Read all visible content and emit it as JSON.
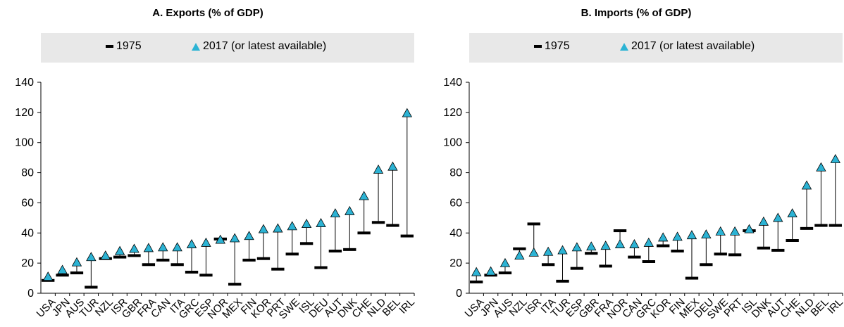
{
  "legend": {
    "item_1975": "1975",
    "item_2017": "2017 (or latest available)",
    "color_2017": "#2cb3d4",
    "color_1975": "#000000"
  },
  "chart_data": [
    {
      "type": "dumbbell",
      "title": "A. Exports (% of GDP)",
      "ylim": [
        0,
        140
      ],
      "yticks": [
        0,
        20,
        40,
        60,
        80,
        100,
        120,
        140
      ],
      "categories": [
        "USA",
        "JPN",
        "AUS",
        "TUR",
        "NZL",
        "ISR",
        "GBR",
        "FRA",
        "CAN",
        "ITA",
        "GRC",
        "ESP",
        "NOR",
        "MEX",
        "FIN",
        "KOR",
        "PRT",
        "SWE",
        "ISL",
        "DEU",
        "AUT",
        "DNK",
        "CHE",
        "NLD",
        "BEL",
        "IRL"
      ],
      "series": [
        {
          "name": "1975",
          "values": [
            8.5,
            12,
            13.5,
            4,
            23,
            24,
            25,
            19,
            22,
            19,
            14,
            12,
            36,
            6,
            22,
            23,
            16,
            26,
            33,
            17,
            28,
            29,
            40,
            47,
            45,
            38
          ]
        },
        {
          "name": "2017 (or latest available)",
          "values": [
            11,
            15.5,
            20.5,
            24,
            25,
            28,
            29.5,
            30,
            30.5,
            30.5,
            32.5,
            33.5,
            35.5,
            36.5,
            38,
            42.5,
            43,
            44.5,
            46,
            46.5,
            53,
            54.5,
            64.5,
            82,
            84,
            119.5
          ]
        }
      ]
    },
    {
      "type": "dumbbell",
      "title": "B. Imports (% of GDP)",
      "ylim": [
        0,
        140
      ],
      "yticks": [
        0,
        20,
        40,
        60,
        80,
        100,
        120,
        140
      ],
      "categories": [
        "USA",
        "JPN",
        "AUS",
        "NZL",
        "ISR",
        "ITA",
        "TUR",
        "ESP",
        "GBR",
        "FRA",
        "NOR",
        "CAN",
        "GRC",
        "KOR",
        "FIN",
        "MEX",
        "DEU",
        "SWE",
        "PRT",
        "ISL",
        "DNK",
        "AUT",
        "CHE",
        "NLD",
        "BEL",
        "IRL"
      ],
      "series": [
        {
          "name": "1975",
          "values": [
            7.5,
            12,
            13.5,
            29.5,
            46,
            19,
            8,
            16.5,
            26.5,
            18,
            41.5,
            24,
            21,
            31.5,
            28,
            10,
            19,
            26,
            25.5,
            41.5,
            30,
            28.5,
            35,
            43,
            45,
            45
          ]
        },
        {
          "name": "2017 (or latest available)",
          "values": [
            14,
            14.5,
            20,
            25,
            27,
            27.5,
            28.5,
            30.5,
            31,
            31.5,
            32.5,
            32.5,
            33.5,
            37,
            37.5,
            38.5,
            39,
            41,
            41,
            42.5,
            47.5,
            50,
            53,
            71.5,
            83.5,
            89
          ]
        }
      ]
    }
  ]
}
